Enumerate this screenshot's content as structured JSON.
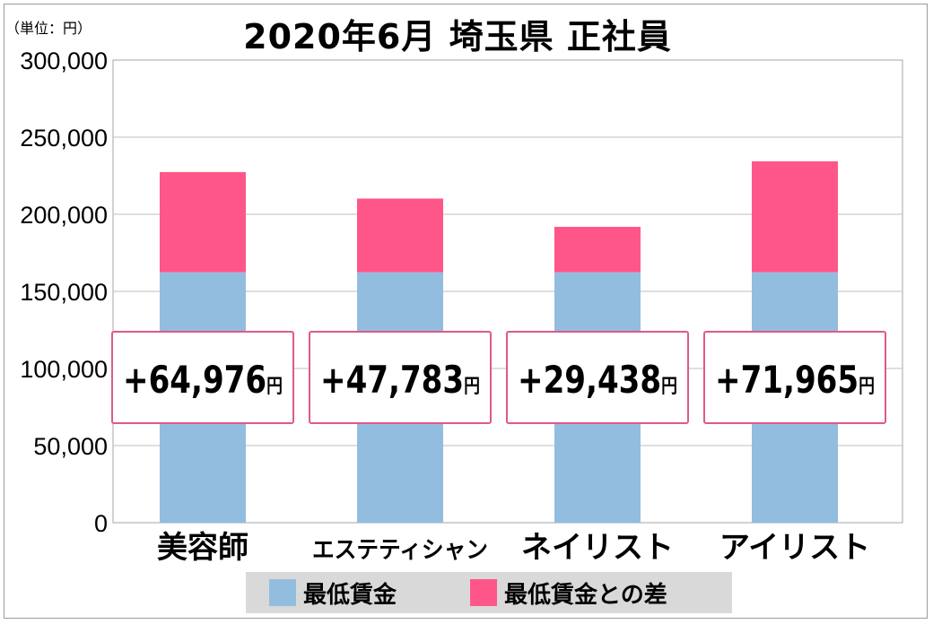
{
  "chart_data": {
    "type": "bar",
    "stacked": true,
    "title": "2020年6月 埼玉県 正社員",
    "unit_label": "（単位：円）",
    "categories": [
      "美容師",
      "エステティシャン",
      "ネイリスト",
      "アイリスト"
    ],
    "series": [
      {
        "name": "最低賃金",
        "values": [
          162400,
          162400,
          162400,
          162400
        ],
        "color": "#92bddf"
      },
      {
        "name": "最低賃金との差",
        "values": [
          64976,
          47783,
          29438,
          71965
        ],
        "color": "#ff568a"
      }
    ],
    "difference_labels": [
      "+64,976",
      "+47,783",
      "+29,438",
      "+71,965"
    ],
    "difference_unit": "円",
    "ylim": [
      0,
      300000
    ],
    "yticks": [
      0,
      50000,
      100000,
      150000,
      200000,
      250000,
      300000
    ],
    "ytick_labels": [
      "0",
      "50,000",
      "100,000",
      "150,000",
      "200,000",
      "250,000",
      "300,000"
    ],
    "grid": true,
    "legend_position": "bottom"
  }
}
